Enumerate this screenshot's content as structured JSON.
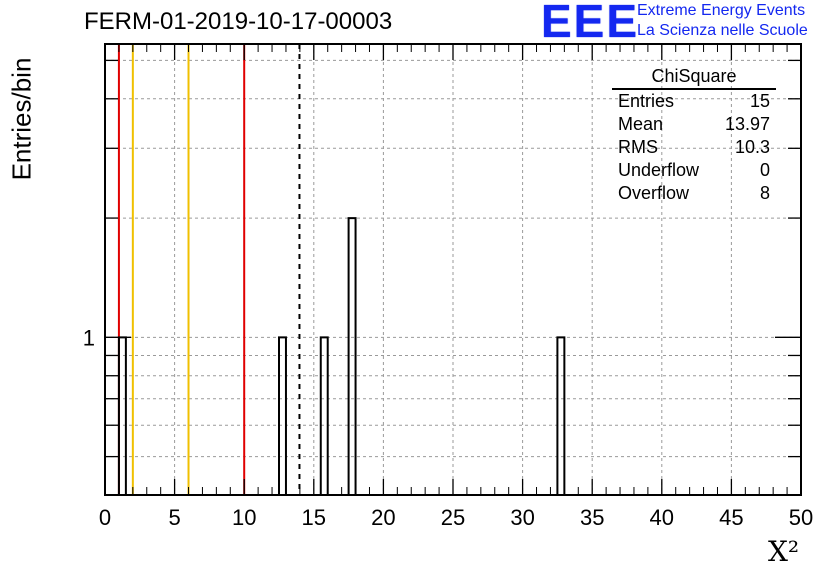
{
  "title": "FERM-01-2019-10-17-00003",
  "logo": {
    "mark": "EEE",
    "line1": "Extreme Energy Events",
    "line2": "La Scienza nelle Scuole"
  },
  "stats": {
    "title": "ChiSquare",
    "rows": [
      {
        "label": "Entries",
        "value": "15"
      },
      {
        "label": "Mean",
        "value": "13.97"
      },
      {
        "label": "RMS",
        "value": "10.3"
      },
      {
        "label": "Underflow",
        "value": "0"
      },
      {
        "label": "Overflow",
        "value": "8"
      }
    ]
  },
  "chart_data": {
    "type": "bar",
    "title": "FERM-01-2019-10-17-00003",
    "xlabel": "X²",
    "ylabel": "Entries/bin",
    "xlim": [
      0,
      50
    ],
    "ylim": [
      0.4,
      5.5
    ],
    "yscale": "log",
    "grid": true,
    "x_ticks": [
      "0",
      "5",
      "10",
      "15",
      "20",
      "25",
      "30",
      "35",
      "40",
      "45",
      "50"
    ],
    "y_tick_labels": [
      "1"
    ],
    "bin_width": 0.5,
    "bins": [
      {
        "x": 1.0,
        "value": 1
      },
      {
        "x": 12.5,
        "value": 1
      },
      {
        "x": 15.5,
        "value": 1
      },
      {
        "x": 17.5,
        "value": 2
      },
      {
        "x": 32.5,
        "value": 1
      }
    ],
    "reference_lines": [
      {
        "x": 1.0,
        "color": "#e00000",
        "style": "solid"
      },
      {
        "x": 2.0,
        "color": "#f0c000",
        "style": "solid"
      },
      {
        "x": 6.0,
        "color": "#f0c000",
        "style": "solid"
      },
      {
        "x": 10.0,
        "color": "#e00000",
        "style": "solid"
      },
      {
        "x": 13.97,
        "color": "#000000",
        "style": "dashed"
      }
    ]
  }
}
